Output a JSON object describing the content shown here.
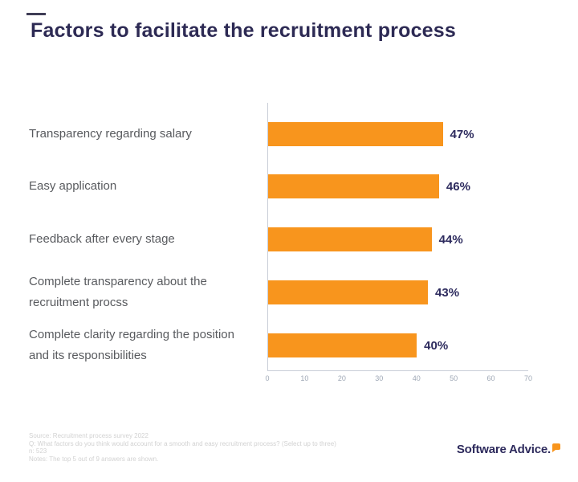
{
  "page": {
    "title": "Factors to facilitate the recruitment process"
  },
  "chart_data": {
    "type": "bar",
    "orientation": "horizontal",
    "title": "Factors to facilitate the recruitment process",
    "categories": [
      "Transparency regarding salary",
      "Easy application",
      "Feedback after every stage",
      "Complete transparency about the recruitment procss",
      "Complete clarity regarding the position and its responsibilities"
    ],
    "values": [
      47,
      46,
      44,
      43,
      40
    ],
    "value_labels": [
      "47%",
      "46%",
      "44%",
      "43%",
      "40%"
    ],
    "xlabel": "",
    "ylabel": "",
    "xlim": [
      0,
      70
    ],
    "x_ticks": [
      "0",
      "10",
      "20",
      "30",
      "40",
      "50",
      "60",
      "70"
    ],
    "grid": false,
    "legend": "none",
    "bar_color": "#F8951D",
    "value_label_color": "#2D2B5E",
    "axis_color": "#C9CED8"
  },
  "footer": {
    "lines": [
      "Source: Recruitment process survey 2022",
      "Q: What factors do you think would account for a smooth and easy recruitment process? (Select up to three)",
      "n: 523",
      "Notes: The top 5 out of 9 answers are shown."
    ]
  },
  "branding": {
    "logo_text": "Software Advice.",
    "logo_accent_color": "#F8951D"
  },
  "colors": {
    "accent_orange": "#F8951D",
    "brand_navy": "#2D2A54",
    "category_label_gray": "#585A5E",
    "axis_gray": "#9FA8B6",
    "footer_gray": "#D2D2D2"
  }
}
